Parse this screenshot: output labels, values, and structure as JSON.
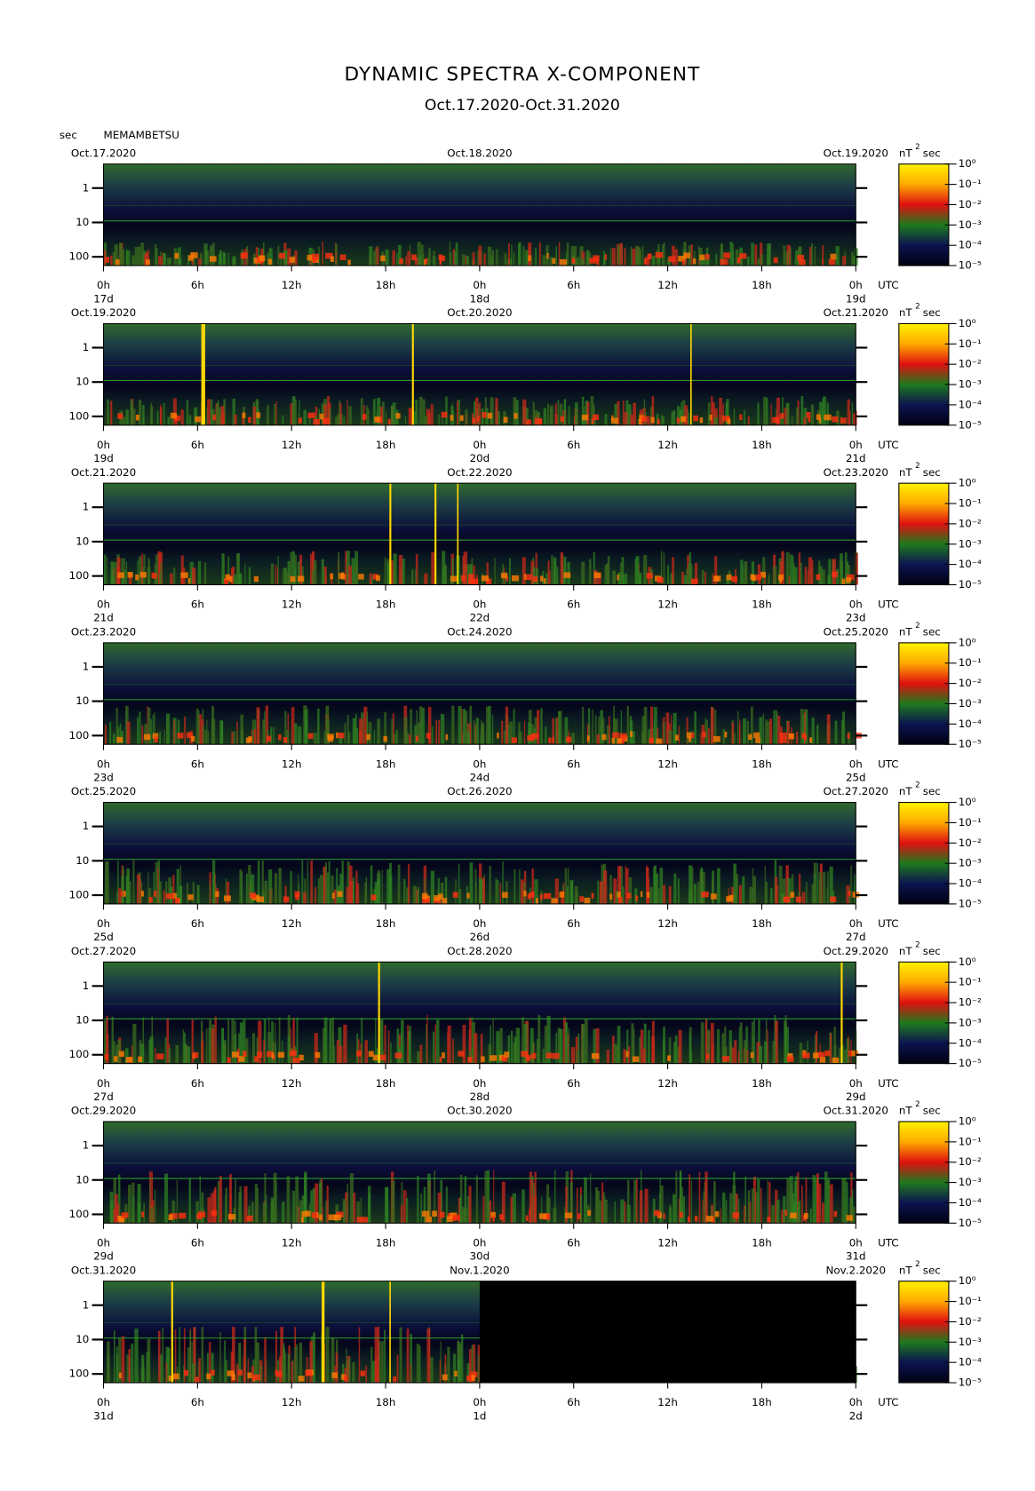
{
  "chart_data": {
    "type": "spectrogram",
    "title": "DYNAMIC SPECTRA X-COMPONENT",
    "subtitle": "Oct.17.2020-Oct.31.2020",
    "station": "MEMAMBETSU",
    "y_label": "sec",
    "x_unit": "UTC",
    "colorbar_unit": "nT",
    "colorbar_unit_power": "2",
    "colorbar_unit_tail": "sec",
    "xlim": [
      0,
      48
    ],
    "xticks": [
      {
        "value": 0,
        "label": "0h"
      },
      {
        "value": 6,
        "label": "6h"
      },
      {
        "value": 12,
        "label": "12h"
      },
      {
        "value": 18,
        "label": "18h"
      },
      {
        "value": 24,
        "label": "0h"
      },
      {
        "value": 30,
        "label": "6h"
      },
      {
        "value": 36,
        "label": "12h"
      },
      {
        "value": 42,
        "label": "18h"
      },
      {
        "value": 48,
        "label": "0h"
      }
    ],
    "ylog": true,
    "yinverted": true,
    "ylim": [
      0.2,
      180
    ],
    "yticks": [
      1,
      10,
      100
    ],
    "clog": true,
    "clim": [
      1e-05,
      1
    ],
    "cticks": [
      {
        "value": 1,
        "label": "10⁰"
      },
      {
        "value": 0.1,
        "label": "10⁻¹"
      },
      {
        "value": 0.01,
        "label": "10⁻²"
      },
      {
        "value": 0.001,
        "label": "10⁻³"
      },
      {
        "value": 0.0001,
        "label": "10⁻⁴"
      },
      {
        "value": 1e-05,
        "label": "10⁻⁵"
      }
    ],
    "panels": [
      {
        "dates": [
          "Oct.17.2020",
          "Oct.18.2020",
          "Oct.19.2020"
        ],
        "days": [
          "17d",
          "18d",
          "19d"
        ]
      },
      {
        "dates": [
          "Oct.19.2020",
          "Oct.20.2020",
          "Oct.21.2020"
        ],
        "days": [
          "19d",
          "20d",
          "21d"
        ]
      },
      {
        "dates": [
          "Oct.21.2020",
          "Oct.22.2020",
          "Oct.23.2020"
        ],
        "days": [
          "21d",
          "22d",
          "23d"
        ]
      },
      {
        "dates": [
          "Oct.23.2020",
          "Oct.24.2020",
          "Oct.25.2020"
        ],
        "days": [
          "23d",
          "24d",
          "25d"
        ]
      },
      {
        "dates": [
          "Oct.25.2020",
          "Oct.26.2020",
          "Oct.27.2020"
        ],
        "days": [
          "25d",
          "26d",
          "27d"
        ]
      },
      {
        "dates": [
          "Oct.27.2020",
          "Oct.28.2020",
          "Oct.29.2020"
        ],
        "days": [
          "27d",
          "28d",
          "29d"
        ]
      },
      {
        "dates": [
          "Oct.29.2020",
          "Oct.30.2020",
          "Oct.31.2020"
        ],
        "days": [
          "29d",
          "30d",
          "31d"
        ]
      },
      {
        "dates": [
          "Oct.31.2020",
          "Nov.1.2020",
          "Nov.2.2020"
        ],
        "days": [
          "31d",
          "1d",
          "2d"
        ],
        "no_data_xlim": [
          24,
          48
        ]
      }
    ]
  }
}
